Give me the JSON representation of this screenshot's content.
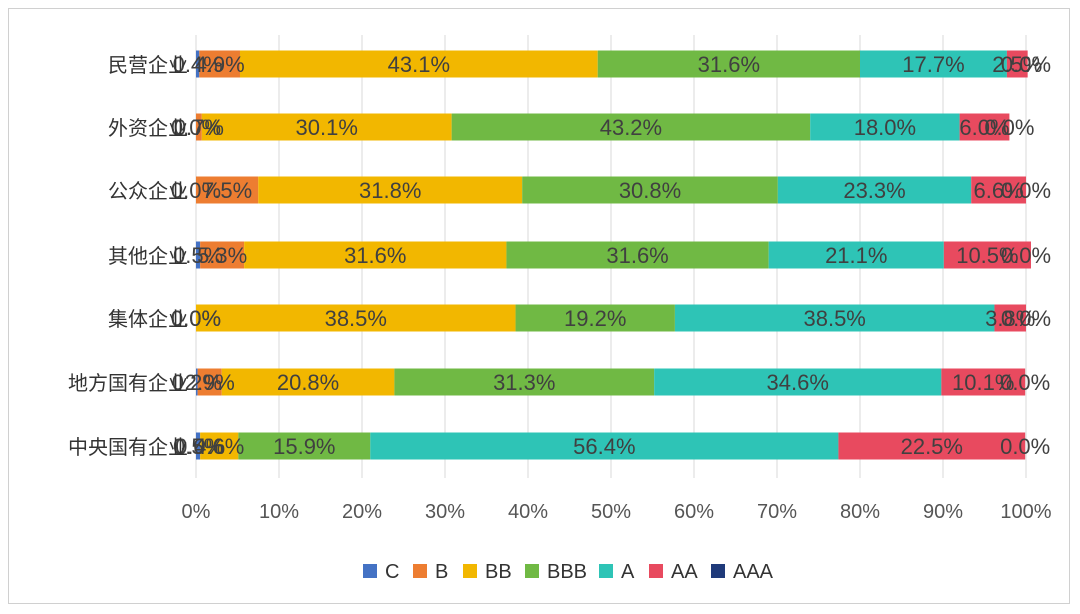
{
  "chart_data": {
    "type": "bar",
    "orientation": "horizontal",
    "stacked": "percent",
    "title": "",
    "categories": [
      "民营企业",
      "外资企业",
      "公众企业",
      "其他企业",
      "集体企业",
      "地方国有企业",
      "中央国有企业"
    ],
    "series": [
      {
        "name": "C",
        "color": "#4472C4",
        "values": [
          0.4,
          0.0,
          0.0,
          0.5,
          0.0,
          0.2,
          0.5
        ]
      },
      {
        "name": "B",
        "color": "#ED7D31",
        "values": [
          4.9,
          0.7,
          7.5,
          5.3,
          0.0,
          2.9,
          0.0
        ]
      },
      {
        "name": "BB",
        "color": "#F2B700",
        "values": [
          43.1,
          30.1,
          31.8,
          31.6,
          38.5,
          20.8,
          4.6
        ]
      },
      {
        "name": "BBB",
        "color": "#70B944",
        "values": [
          31.6,
          43.2,
          30.8,
          31.6,
          19.2,
          31.3,
          15.9
        ]
      },
      {
        "name": "A",
        "color": "#2EC4B6",
        "values": [
          17.7,
          18.0,
          23.3,
          21.1,
          38.5,
          34.6,
          56.4
        ]
      },
      {
        "name": "AA",
        "color": "#E84A5F",
        "values": [
          2.5,
          6.0,
          6.6,
          10.5,
          3.8,
          10.1,
          22.5
        ]
      },
      {
        "name": "AAA",
        "color": "#1F3A7A",
        "values": [
          0.0,
          0.0,
          0.0,
          0.0,
          0.0,
          0.0,
          0.0
        ]
      }
    ],
    "labels": [
      [
        "0.4%",
        "4.9%",
        "43.1%",
        "31.6%",
        "17.7%",
        "2.5%",
        "0.0%"
      ],
      [
        "0.0%",
        "0.7%",
        "30.1%",
        "43.2%",
        "18.0%",
        "6.0%",
        "0.0%"
      ],
      [
        "0.0%",
        "7.5%",
        "31.8%",
        "30.8%",
        "23.3%",
        "6.6%",
        "0.0%"
      ],
      [
        "0.5%",
        "5.3%",
        "31.6%",
        "31.6%",
        "21.1%",
        "10.5%",
        "0.0%"
      ],
      [
        "0.0%",
        "0.0%",
        "38.5%",
        "19.2%",
        "38.5%",
        "3.8%",
        "0.0%"
      ],
      [
        "0.2%",
        "2.9%",
        "20.8%",
        "31.3%",
        "34.6%",
        "10.1%",
        "0.0%"
      ],
      [
        "0.5%",
        "0.0%",
        "4.6%",
        "15.9%",
        "56.4%",
        "22.5%",
        "0.0%"
      ]
    ],
    "xlim": [
      0,
      100
    ],
    "xticks": [
      "0%",
      "10%",
      "20%",
      "30%",
      "40%",
      "50%",
      "60%",
      "70%",
      "80%",
      "90%",
      "100%"
    ],
    "grid": true,
    "legend": "bottom"
  }
}
